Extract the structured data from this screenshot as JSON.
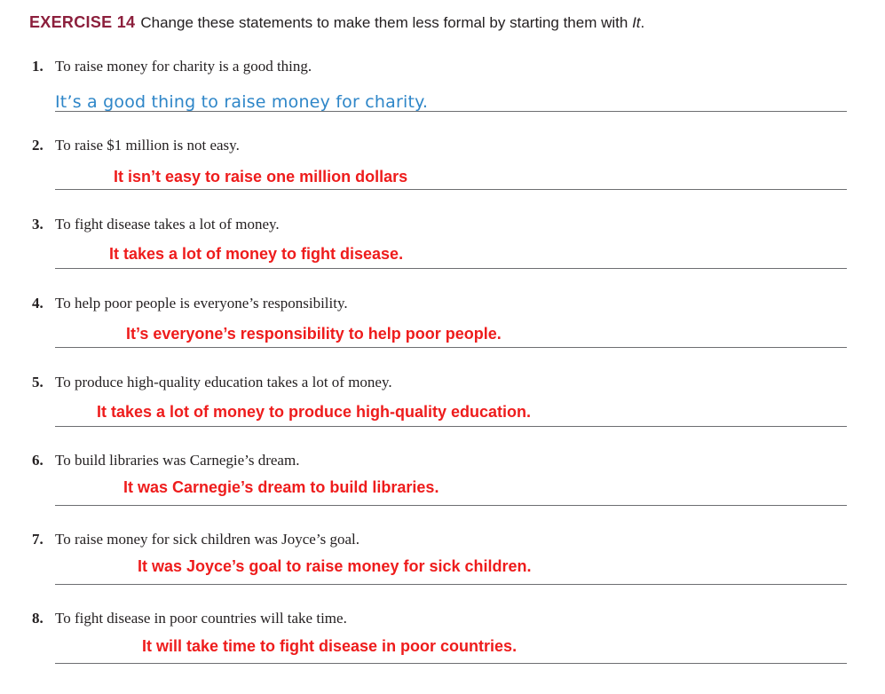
{
  "header": {
    "label": "EXERCISE 14",
    "instruction": "Change these statements to make them less formal by starting them with ",
    "instruction_italic": "It",
    "instruction_end": "."
  },
  "items": [
    {
      "number": "1.",
      "prompt": "To raise money for charity is a good thing.",
      "answer": "It’s a good thing to raise money for charity."
    },
    {
      "number": "2.",
      "prompt": "To raise $1 million is not easy.",
      "answer": "It isn’t easy to raise one million dollars"
    },
    {
      "number": "3.",
      "prompt": "To fight disease takes a lot of money.",
      "answer": "It takes a lot of money to fight disease."
    },
    {
      "number": "4.",
      "prompt": "To help poor people is everyone’s responsibility.",
      "answer": "It’s everyone’s responsibility to help poor people."
    },
    {
      "number": "5.",
      "prompt": "To produce high-quality education takes a lot of money.",
      "answer": "It takes a lot of money to produce high-quality education."
    },
    {
      "number": "6.",
      "prompt": "To build libraries was Carnegie’s dream.",
      "answer": "It was Carnegie’s dream to build libraries."
    },
    {
      "number": "7.",
      "prompt": "To raise money for sick children was Joyce’s goal.",
      "answer": "It was Joyce’s goal to raise money for sick children."
    },
    {
      "number": "8.",
      "prompt": "To fight disease in poor countries will take time.",
      "answer": "It will take time to fight disease in poor countries."
    }
  ],
  "colors": {
    "exercise_label": "#8c1f3c",
    "example_answer": "#2e86c8",
    "filled_answers": "#ee1c1c"
  }
}
